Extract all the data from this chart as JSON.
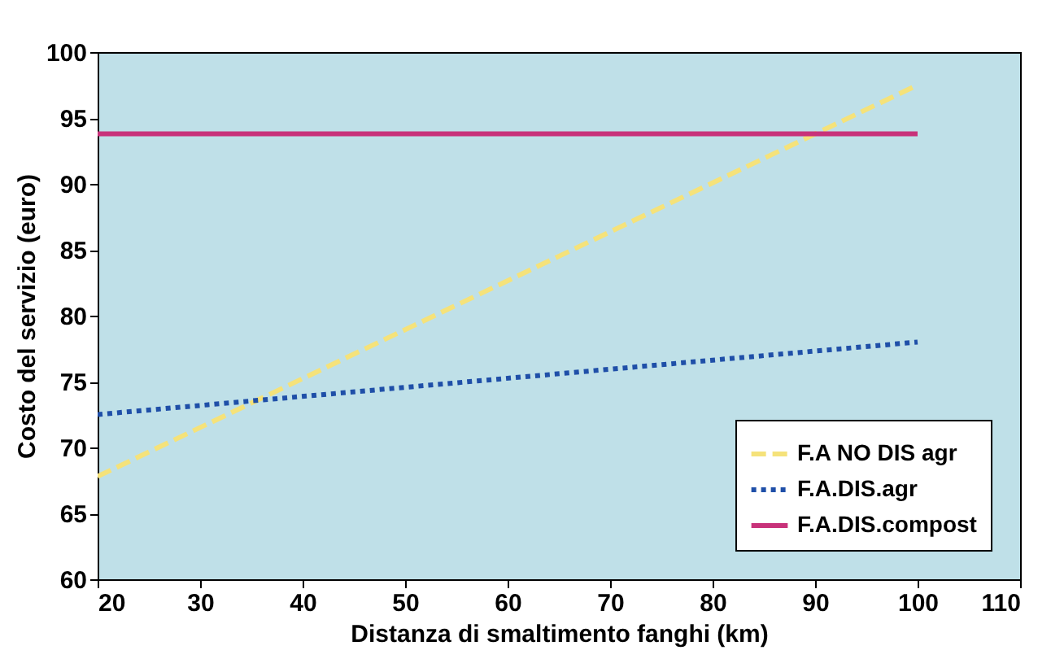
{
  "chart_data": {
    "type": "line",
    "xlabel": "Distanza di smaltimento fanghi (km)",
    "ylabel": "Costo del servizio (euro)",
    "xlim": [
      20,
      110
    ],
    "xticks": [
      20,
      30,
      40,
      50,
      60,
      70,
      80,
      90,
      100,
      110
    ],
    "ylim": [
      60,
      100
    ],
    "yticks": [
      60,
      65,
      70,
      75,
      80,
      85,
      90,
      95,
      100
    ],
    "grid": false,
    "legend": "bottom right",
    "marker": "none",
    "x": [
      20,
      100
    ],
    "series": [
      {
        "name": "F.A NO DIS agr",
        "color": "#f5e27a",
        "line_style": "dashed",
        "values": [
          67.8,
          97.5
        ]
      },
      {
        "name": "F.A.DIS.agr",
        "color": "#1f4fa8",
        "line_style": "dotted",
        "values": [
          72.5,
          78.0
        ]
      },
      {
        "name": "F.A.DIS.compost",
        "color": "#c8327a",
        "line_style": "solid",
        "values": [
          93.8,
          93.8
        ]
      }
    ]
  }
}
